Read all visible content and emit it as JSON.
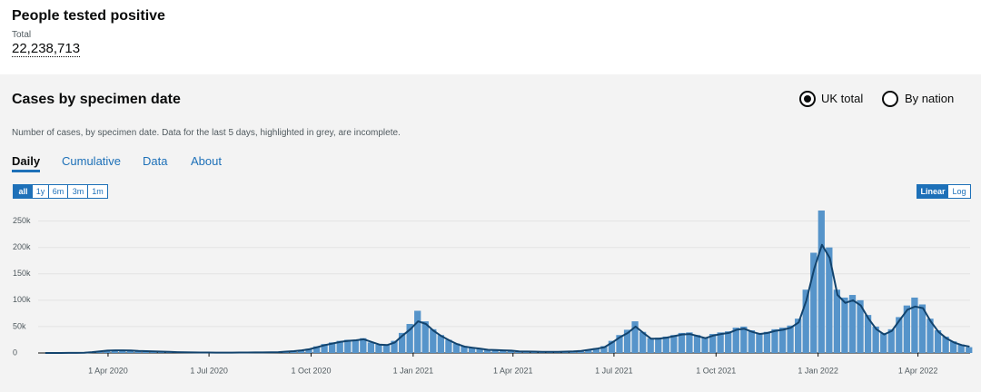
{
  "header": {
    "title": "People tested positive",
    "total_label": "Total",
    "total_value": "22,238,713"
  },
  "card": {
    "title": "Cases by specimen date",
    "options": [
      "UK total",
      "By nation"
    ],
    "description": "Number of cases, by specimen date. Data for the last 5 days, highlighted in grey, are incomplete.",
    "tabs": [
      "Daily",
      "Cumulative",
      "Data",
      "About"
    ],
    "ranges": [
      "all",
      "1y",
      "6m",
      "3m",
      "1m"
    ],
    "scales": [
      "Linear",
      "Log"
    ]
  },
  "chart_data": {
    "type": "bar",
    "color": "#5694ca",
    "x": [
      "2020-02-01",
      "2020-02-08",
      "2020-02-15",
      "2020-02-22",
      "2020-02-29",
      "2020-03-07",
      "2020-03-14",
      "2020-03-21",
      "2020-03-28",
      "2020-04-04",
      "2020-04-11",
      "2020-04-18",
      "2020-04-25",
      "2020-05-02",
      "2020-05-09",
      "2020-05-16",
      "2020-05-23",
      "2020-05-30",
      "2020-06-06",
      "2020-06-13",
      "2020-06-20",
      "2020-06-27",
      "2020-07-04",
      "2020-07-11",
      "2020-07-18",
      "2020-07-25",
      "2020-08-01",
      "2020-08-08",
      "2020-08-15",
      "2020-08-22",
      "2020-08-29",
      "2020-09-05",
      "2020-09-12",
      "2020-09-19",
      "2020-09-26",
      "2020-10-03",
      "2020-10-10",
      "2020-10-17",
      "2020-10-24",
      "2020-10-31",
      "2020-11-07",
      "2020-11-14",
      "2020-11-21",
      "2020-11-28",
      "2020-12-05",
      "2020-12-12",
      "2020-12-19",
      "2020-12-26",
      "2021-01-02",
      "2021-01-09",
      "2021-01-16",
      "2021-01-23",
      "2021-01-30",
      "2021-02-06",
      "2021-02-13",
      "2021-02-20",
      "2021-02-27",
      "2021-03-06",
      "2021-03-13",
      "2021-03-20",
      "2021-03-27",
      "2021-04-03",
      "2021-04-10",
      "2021-04-17",
      "2021-04-24",
      "2021-05-01",
      "2021-05-08",
      "2021-05-15",
      "2021-05-22",
      "2021-05-29",
      "2021-06-05",
      "2021-06-12",
      "2021-06-19",
      "2021-06-26",
      "2021-07-03",
      "2021-07-10",
      "2021-07-17",
      "2021-07-24",
      "2021-07-31",
      "2021-08-07",
      "2021-08-14",
      "2021-08-21",
      "2021-08-28",
      "2021-09-04",
      "2021-09-11",
      "2021-09-18",
      "2021-09-25",
      "2021-10-02",
      "2021-10-09",
      "2021-10-16",
      "2021-10-23",
      "2021-10-30",
      "2021-11-06",
      "2021-11-13",
      "2021-11-20",
      "2021-11-27",
      "2021-12-04",
      "2021-12-11",
      "2021-12-18",
      "2021-12-25",
      "2022-01-01",
      "2022-01-08",
      "2022-01-15",
      "2022-01-22",
      "2022-01-29",
      "2022-02-05",
      "2022-02-12",
      "2022-02-19",
      "2022-02-26",
      "2022-03-05",
      "2022-03-12",
      "2022-03-19",
      "2022-03-26",
      "2022-04-02",
      "2022-04-09",
      "2022-04-16",
      "2022-04-23",
      "2022-04-30",
      "2022-05-07",
      "2022-05-14"
    ],
    "values": [
      0,
      0,
      0,
      100,
      300,
      700,
      2000,
      3500,
      5000,
      5500,
      5200,
      4600,
      4200,
      3300,
      2900,
      2600,
      1900,
      1400,
      1300,
      1000,
      850,
      850,
      700,
      750,
      650,
      850,
      950,
      1050,
      1200,
      1300,
      1700,
      2900,
      4000,
      5800,
      8000,
      12500,
      17000,
      20000,
      23000,
      25000,
      25000,
      28000,
      20000,
      16000,
      16500,
      23000,
      38000,
      55000,
      80000,
      60000,
      45000,
      34000,
      25000,
      18000,
      13000,
      11000,
      8500,
      6500,
      6000,
      5500,
      4800,
      3200,
      3000,
      2600,
      2400,
      2300,
      2500,
      2700,
      3300,
      4500,
      6500,
      9000,
      13000,
      23000,
      34000,
      44000,
      60000,
      40000,
      28000,
      29000,
      31000,
      34000,
      38000,
      39000,
      34000,
      30000,
      36000,
      39000,
      41000,
      48000,
      50000,
      43000,
      38000,
      40000,
      45000,
      48000,
      52000,
      65000,
      120000,
      190000,
      270000,
      200000,
      120000,
      105000,
      110000,
      100000,
      72000,
      50000,
      38000,
      45000,
      68000,
      90000,
      105000,
      92000,
      65000,
      43000,
      31000,
      22000,
      16000,
      11000
    ],
    "average": {
      "color": "#12436d",
      "values": [
        0,
        0,
        0,
        100,
        200,
        500,
        1500,
        3000,
        4500,
        5000,
        5000,
        4800,
        4000,
        3500,
        3000,
        2500,
        2000,
        1500,
        1200,
        1000,
        900,
        800,
        700,
        700,
        700,
        800,
        900,
        1000,
        1100,
        1200,
        1500,
        2500,
        3500,
        5000,
        7000,
        11000,
        15000,
        18000,
        21000,
        23000,
        24000,
        26000,
        21000,
        16000,
        15000,
        20000,
        33000,
        45000,
        60000,
        55000,
        42000,
        32000,
        24000,
        17000,
        12000,
        10000,
        8000,
        6000,
        5500,
        5000,
        4500,
        3000,
        2800,
        2500,
        2300,
        2200,
        2300,
        2500,
        3000,
        4000,
        6000,
        8000,
        11000,
        20000,
        30000,
        38000,
        50000,
        38000,
        27000,
        27000,
        29000,
        32000,
        35000,
        36000,
        32000,
        28000,
        33000,
        36000,
        38000,
        44000,
        46000,
        40000,
        36000,
        38000,
        42000,
        44000,
        48000,
        58000,
        100000,
        160000,
        205000,
        180000,
        110000,
        95000,
        100000,
        90000,
        65000,
        45000,
        35000,
        42000,
        62000,
        82000,
        88000,
        85000,
        60000,
        40000,
        28000,
        20000,
        15000,
        12000
      ]
    },
    "xlim": [
      "2020-01-29",
      "2022-05-18"
    ],
    "xticks": [
      {
        "value": "2020-04-01",
        "label": "1 Apr 2020"
      },
      {
        "value": "2020-07-01",
        "label": "1 Jul 2020"
      },
      {
        "value": "2020-10-01",
        "label": "1 Oct 2020"
      },
      {
        "value": "2021-01-01",
        "label": "1 Jan 2021"
      },
      {
        "value": "2021-04-01",
        "label": "1 Apr 2021"
      },
      {
        "value": "2021-07-01",
        "label": "1 Jul 2021"
      },
      {
        "value": "2021-10-01",
        "label": "1 Oct 2021"
      },
      {
        "value": "2022-01-01",
        "label": "1 Jan 2022"
      },
      {
        "value": "2022-04-01",
        "label": "1 Apr 2022"
      }
    ],
    "ylim": [
      0,
      270000
    ],
    "yticks": [
      0,
      {
        "value": 50000,
        "label": "50k"
      },
      {
        "value": 100000,
        "label": "100k"
      },
      {
        "value": 150000,
        "label": "150k"
      },
      {
        "value": 200000,
        "label": "200k"
      },
      {
        "value": 250000,
        "label": "250k"
      }
    ],
    "grid": true
  }
}
